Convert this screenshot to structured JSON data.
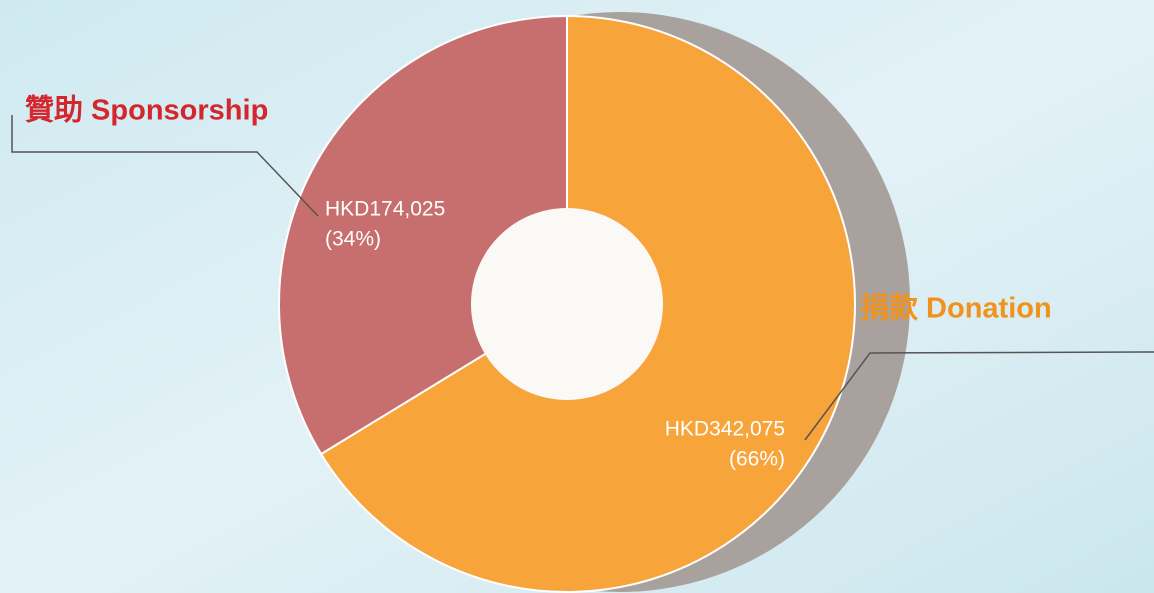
{
  "chart_data": {
    "type": "pie",
    "donut": true,
    "categories": [
      "捐款 Donation",
      "贊助 Sponsorship"
    ],
    "values": [
      342075,
      174025
    ],
    "value_labels": [
      "HKD342,075",
      "HKD174,025"
    ],
    "percent_labels": [
      "(66%)",
      "(34%)"
    ],
    "colors": [
      "#f7a43a",
      "#c76f6e"
    ],
    "label_colors": [
      "#f0921c",
      "#d3262d"
    ]
  }
}
